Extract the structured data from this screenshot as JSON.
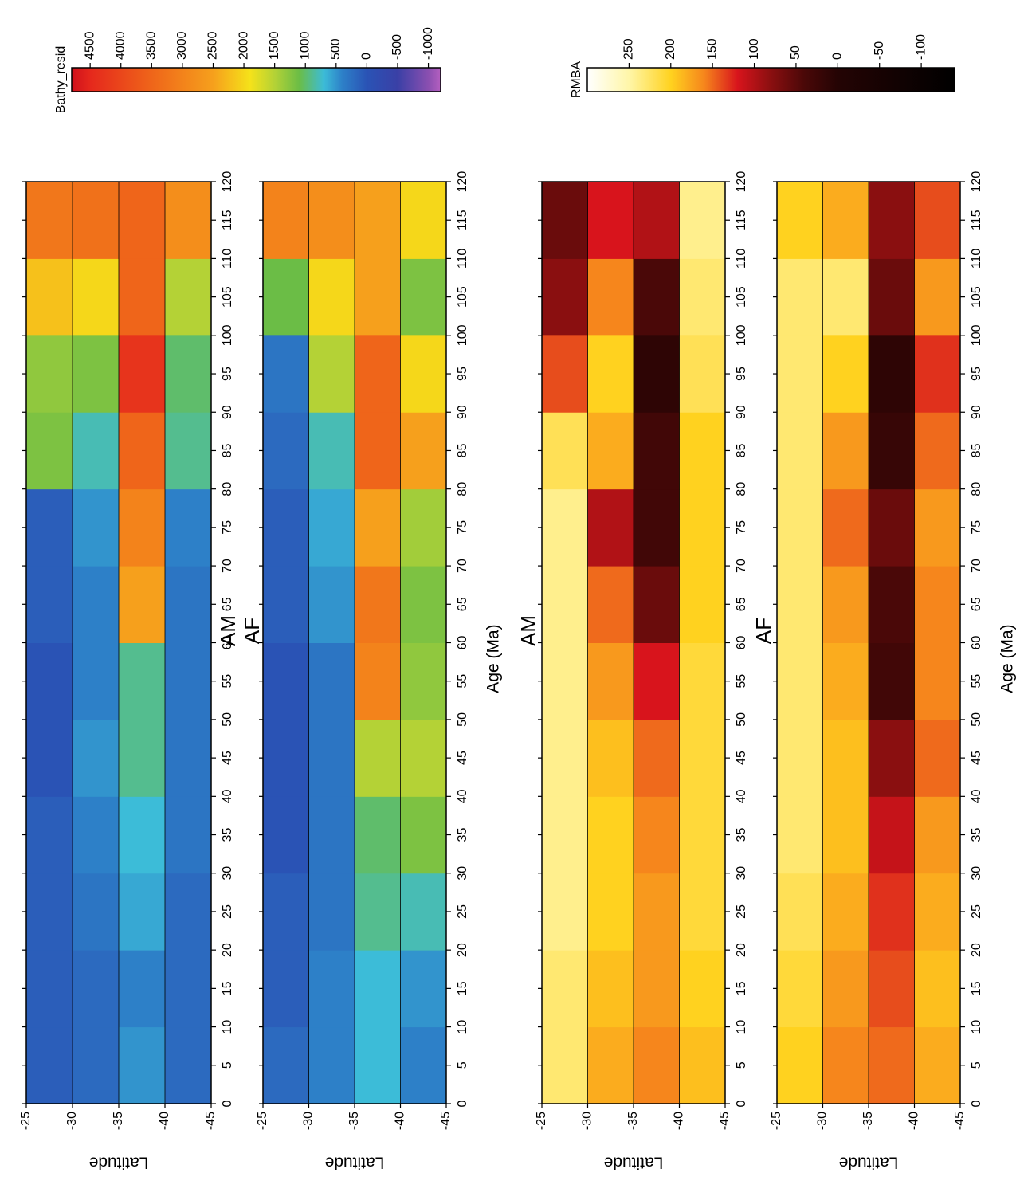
{
  "chart_data": [
    {
      "type": "heatmap",
      "xlabel": "Age (Ma)",
      "ylabel": "Latitude",
      "xlim": [
        0,
        120
      ],
      "xticks": [
        0,
        5,
        10,
        15,
        20,
        25,
        30,
        35,
        40,
        45,
        50,
        55,
        60,
        65,
        70,
        75,
        80,
        85,
        90,
        95,
        100,
        105,
        110,
        115,
        120
      ],
      "ylim": [
        -25,
        -45
      ],
      "yticks": [
        -25,
        -30,
        -35,
        -40,
        -45
      ],
      "grid": true,
      "x_bins": [
        0,
        10,
        20,
        30,
        40,
        50,
        60,
        70,
        80,
        90,
        100,
        110,
        120
      ],
      "y_bins": [
        -25,
        -30,
        -35,
        -40,
        -45
      ],
      "colorbar": {
        "label": "Bathy_resid",
        "lim": [
          4800,
          -1200
        ],
        "ticks": [
          4500,
          4000,
          3500,
          3000,
          2500,
          2000,
          1500,
          1000,
          500,
          0,
          -500,
          -1000
        ],
        "colorscale": [
          [
            4800,
            "#d0101c"
          ],
          [
            4500,
            "#e5281c"
          ],
          [
            3500,
            "#ef651a"
          ],
          [
            2500,
            "#f6a01c"
          ],
          [
            1900,
            "#f5e21a"
          ],
          [
            1500,
            "#b4d236"
          ],
          [
            1100,
            "#6bbd46"
          ],
          [
            700,
            "#3cbcd8"
          ],
          [
            400,
            "#2d80c8"
          ],
          [
            0,
            "#2a53b5"
          ],
          [
            -500,
            "#3a40a6"
          ],
          [
            -1000,
            "#8a4fb0"
          ],
          [
            -1200,
            "#b45fc0"
          ]
        ]
      },
      "panels": [
        {
          "title": "AM",
          "z": [
            [
              100,
              200,
              500,
              200
            ],
            [
              100,
              200,
              400,
              200
            ],
            [
              100,
              300,
              600,
              200
            ],
            [
              100,
              400,
              700,
              300
            ],
            [
              0,
              500,
              900,
              300
            ],
            [
              0,
              400,
              900,
              300
            ],
            [
              100,
              400,
              2500,
              300
            ],
            [
              100,
              500,
              3000,
              400
            ],
            [
              1200,
              800,
              3500,
              900
            ],
            [
              1300,
              1200,
              4300,
              1000
            ],
            [
              2200,
              2000,
              3500,
              1500
            ],
            [
              3200,
              3300,
              3500,
              2800
            ]
          ]
        },
        {
          "title": "AF",
          "z": [
            [
              200,
              400,
              700,
              400
            ],
            [
              100,
              400,
              700,
              500
            ],
            [
              100,
              300,
              900,
              800
            ],
            [
              0,
              300,
              1000,
              1200
            ],
            [
              0,
              300,
              1500,
              1500
            ],
            [
              0,
              300,
              3000,
              1300
            ],
            [
              100,
              500,
              3200,
              1200
            ],
            [
              100,
              600,
              2500,
              1400
            ],
            [
              200,
              800,
              3500,
              2500
            ],
            [
              300,
              1500,
              3500,
              2000
            ],
            [
              1100,
              2000,
              2500,
              1200
            ],
            [
              3000,
              2800,
              2500,
              2000
            ]
          ]
        }
      ]
    },
    {
      "type": "heatmap",
      "xlabel": "Age (Ma)",
      "ylabel": "Latitude",
      "xlim": [
        0,
        120
      ],
      "xticks": [
        0,
        5,
        10,
        15,
        20,
        25,
        30,
        35,
        40,
        45,
        50,
        55,
        60,
        65,
        70,
        75,
        80,
        85,
        90,
        95,
        100,
        105,
        110,
        115,
        120
      ],
      "ylim": [
        -25,
        -45
      ],
      "yticks": [
        -25,
        -30,
        -35,
        -40,
        -45
      ],
      "grid": true,
      "x_bins": [
        0,
        10,
        20,
        30,
        40,
        50,
        60,
        70,
        80,
        90,
        100,
        110,
        120
      ],
      "y_bins": [
        -25,
        -30,
        -35,
        -40,
        -45
      ],
      "colorbar": {
        "label": "RMBA",
        "lim": [
          300,
          -140
        ],
        "ticks": [
          250,
          200,
          150,
          100,
          50,
          0,
          -50,
          -100
        ],
        "colorscale": [
          [
            300,
            "#ffffff"
          ],
          [
            250,
            "#fff6a8"
          ],
          [
            200,
            "#ffd21f"
          ],
          [
            160,
            "#f6861c"
          ],
          [
            120,
            "#d8141c"
          ],
          [
            80,
            "#8a0f10"
          ],
          [
            40,
            "#4a0808"
          ],
          [
            0,
            "#240404"
          ],
          [
            -140,
            "#000000"
          ]
        ]
      },
      "panels": [
        {
          "title": "AM",
          "z": [
            [
              230,
              180,
              160,
              190
            ],
            [
              230,
              190,
              170,
              200
            ],
            [
              240,
              200,
              170,
              210
            ],
            [
              240,
              200,
              160,
              210
            ],
            [
              240,
              190,
              150,
              210
            ],
            [
              240,
              170,
              120,
              210
            ],
            [
              240,
              150,
              60,
              200
            ],
            [
              240,
              100,
              30,
              200
            ],
            [
              220,
              180,
              30,
              200
            ],
            [
              140,
              200,
              10,
              220
            ],
            [
              80,
              160,
              40,
              230
            ],
            [
              60,
              120,
              100,
              240
            ]
          ]
        },
        {
          "title": "AF",
          "z": [
            [
              200,
              160,
              150,
              180
            ],
            [
              210,
              170,
              140,
              190
            ],
            [
              220,
              180,
              130,
              180
            ],
            [
              230,
              190,
              110,
              170
            ],
            [
              230,
              190,
              80,
              150
            ],
            [
              230,
              180,
              30,
              160
            ],
            [
              230,
              170,
              40,
              160
            ],
            [
              230,
              150,
              60,
              170
            ],
            [
              230,
              170,
              20,
              150
            ],
            [
              230,
              200,
              10,
              130
            ],
            [
              230,
              230,
              60,
              170
            ],
            [
              200,
              180,
              80,
              140
            ]
          ]
        }
      ]
    }
  ]
}
